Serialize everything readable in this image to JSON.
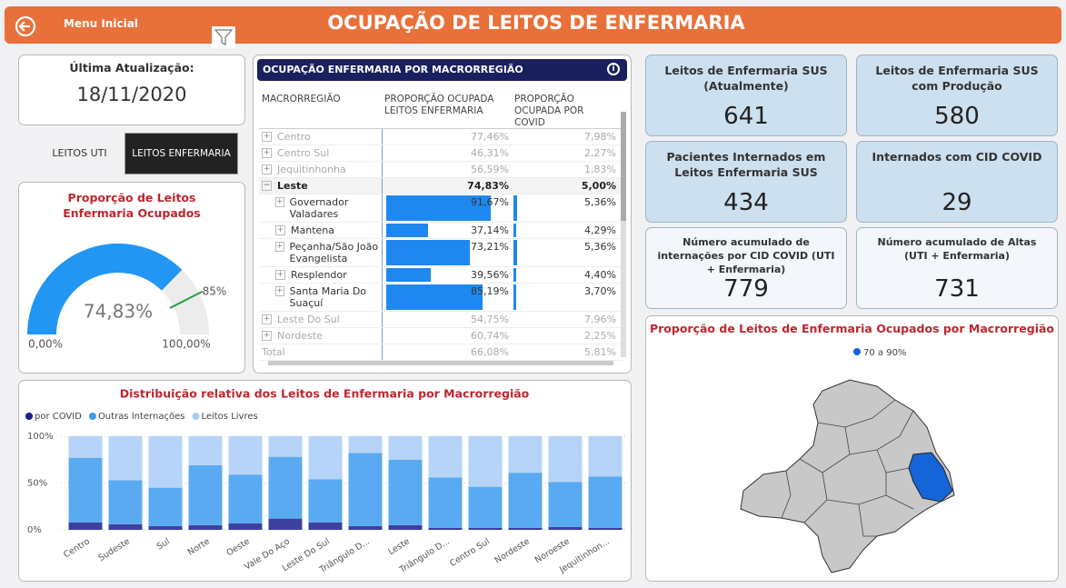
{
  "header": {
    "menu": "Menu Inicial",
    "title": "OCUPAÇÃO DE LEITOS DE ENFERMARIA"
  },
  "last_update": {
    "label": "Última Atualização:",
    "date": "18/11/2020"
  },
  "toggle": {
    "options": [
      "LEITOS UTI",
      "LEITOS ENFERMARIA"
    ],
    "selected": 1
  },
  "table": {
    "title": "OCUPAÇÃO ENFERMARIA POR MACRORREGIÃO",
    "columns": [
      "MACRORREGIÃO",
      "PROPORÇÃO OCUPADA LEITOS ENFERMARIA",
      "PROPORÇÃO OCUPADA POR COVID"
    ],
    "rows": [
      {
        "name": "Centro",
        "occupancy": "77,46%",
        "covid": "7,98%"
      },
      {
        "name": "Centro Sul",
        "occupancy": "46,31%",
        "covid": "2,27%"
      },
      {
        "name": "Jequitinhonha",
        "occupancy": "56,59%",
        "covid": "1,83%"
      },
      {
        "name": "Leste",
        "occupancy": "74,83%",
        "covid": "5,00%",
        "children": [
          {
            "name": "Governador Valadares",
            "occupancy": "91,67%",
            "covid": "5,36%",
            "occupancy_value": 91.67,
            "covid_value": 5.36
          },
          {
            "name": "Mantena",
            "occupancy": "37,14%",
            "covid": "4,29%",
            "occupancy_value": 37.14,
            "covid_value": 4.29
          },
          {
            "name": "Peçanha/São João Evangelista",
            "occupancy": "73,21%",
            "covid": "5,36%",
            "occupancy_value": 73.21,
            "covid_value": 5.36
          },
          {
            "name": "Resplendor",
            "occupancy": "39,56%",
            "covid": "4,40%",
            "occupancy_value": 39.56,
            "covid_value": 4.4
          },
          {
            "name": "Santa Maria Do Suaçuí",
            "occupancy": "85,19%",
            "covid": "3,70%",
            "occupancy_value": 85.19,
            "covid_value": 3.7
          }
        ]
      },
      {
        "name": "Leste Do Sul",
        "occupancy": "54,75%",
        "covid": "7,96%"
      },
      {
        "name": "Nordeste",
        "occupancy": "60,74%",
        "covid": "2,25%"
      }
    ],
    "total": {
      "name": "Total",
      "occupancy": "66,08%",
      "covid": "5,81%"
    }
  },
  "kpis": [
    {
      "title": "Leitos de Enfermaria SUS (Atualmente)",
      "value": "641"
    },
    {
      "title": "Leitos de Enfermaria SUS com Produção",
      "value": "580"
    },
    {
      "title": "Pacientes Internados em Leitos Enfermaria SUS",
      "value": "434"
    },
    {
      "title": "Internados com CID COVID",
      "value": "29"
    },
    {
      "title": "Número acumulado de internações por CID COVID (UTI + Enfermaria)",
      "value": "779"
    },
    {
      "title": "Número acumulado de Altas (UTI + Enfermaria)",
      "value": "731"
    }
  ],
  "map": {
    "title": "Proporção de Leitos de Enfermaria Ocupados por Macrorregião",
    "legend": {
      "label": "70 a 90%",
      "color": "#1565d8"
    }
  },
  "chart_data": [
    {
      "type": "gauge",
      "title": "Proporção de Leitos Enfermaria Ocupados",
      "value": 74.83,
      "value_label": "74,83%",
      "min": {
        "value": 0,
        "label": "0,00%"
      },
      "max": {
        "value": 100,
        "label": "100,00%"
      },
      "target": {
        "value": 85,
        "label": "85%"
      },
      "color": "#2196f3",
      "target_color": "#2e9e3e"
    },
    {
      "type": "stacked_bar",
      "title": "Distribuição relativa dos Leitos de Enfermaria por Macrorregião",
      "categories": [
        "Centro",
        "Sudeste",
        "Sul",
        "Norte",
        "Oeste",
        "Vale Do Aço",
        "Leste Do Sul",
        "Triângulo D...",
        "Leste",
        "Triângulo D...",
        "Centro Sul",
        "Nordeste",
        "Noroeste",
        "Jequitinhon..."
      ],
      "series": [
        {
          "name": "por COVID",
          "color": "#1a1f8c",
          "values": [
            8,
            6,
            4,
            5,
            7,
            12,
            8,
            4,
            5,
            2,
            2,
            2,
            3,
            2
          ]
        },
        {
          "name": "Outras Internações",
          "color": "#3d9bf0",
          "values": [
            69,
            47,
            41,
            64,
            52,
            66,
            46,
            78,
            70,
            54,
            44,
            59,
            48,
            55
          ]
        },
        {
          "name": "Leitos Livres",
          "color": "#a8cdf6",
          "values": [
            23,
            47,
            55,
            31,
            41,
            22,
            46,
            18,
            25,
            44,
            54,
            39,
            49,
            43
          ]
        }
      ],
      "ylim": [
        0,
        100
      ],
      "yticks": [
        {
          "value": 0,
          "label": "0%"
        },
        {
          "value": 50,
          "label": "50%"
        },
        {
          "value": 100,
          "label": "100%"
        }
      ],
      "grid": true
    }
  ]
}
